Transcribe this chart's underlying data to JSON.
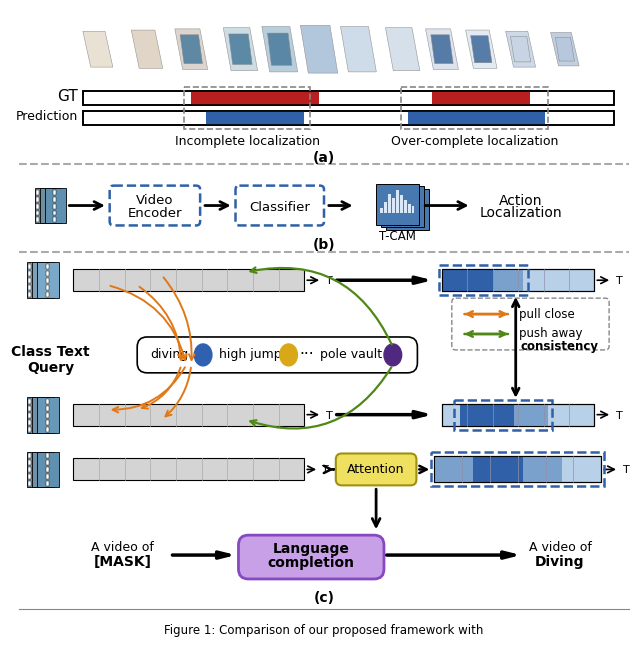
{
  "fig_width": 6.4,
  "fig_height": 6.65,
  "dpi": 100,
  "bg_color": "#ffffff",
  "red_color": "#b82020",
  "blue_color": "#3060a8",
  "light_blue": "#7aa0cc",
  "lighter_blue": "#b8d0e8",
  "orange_color": "#e07818",
  "green_color": "#508818",
  "yellow_color": "#e8c840",
  "purple_color": "#5a2888",
  "lavender_color": "#c8a0e8",
  "attention_color": "#f0e060",
  "gray_color": "#d4d4d4",
  "dark_gray": "#888888",
  "caption": "Figure 1: Comparison of our proposed framework with",
  "section_a_label": "(a)",
  "section_b_label": "(b)",
  "section_c_label": "(c)"
}
